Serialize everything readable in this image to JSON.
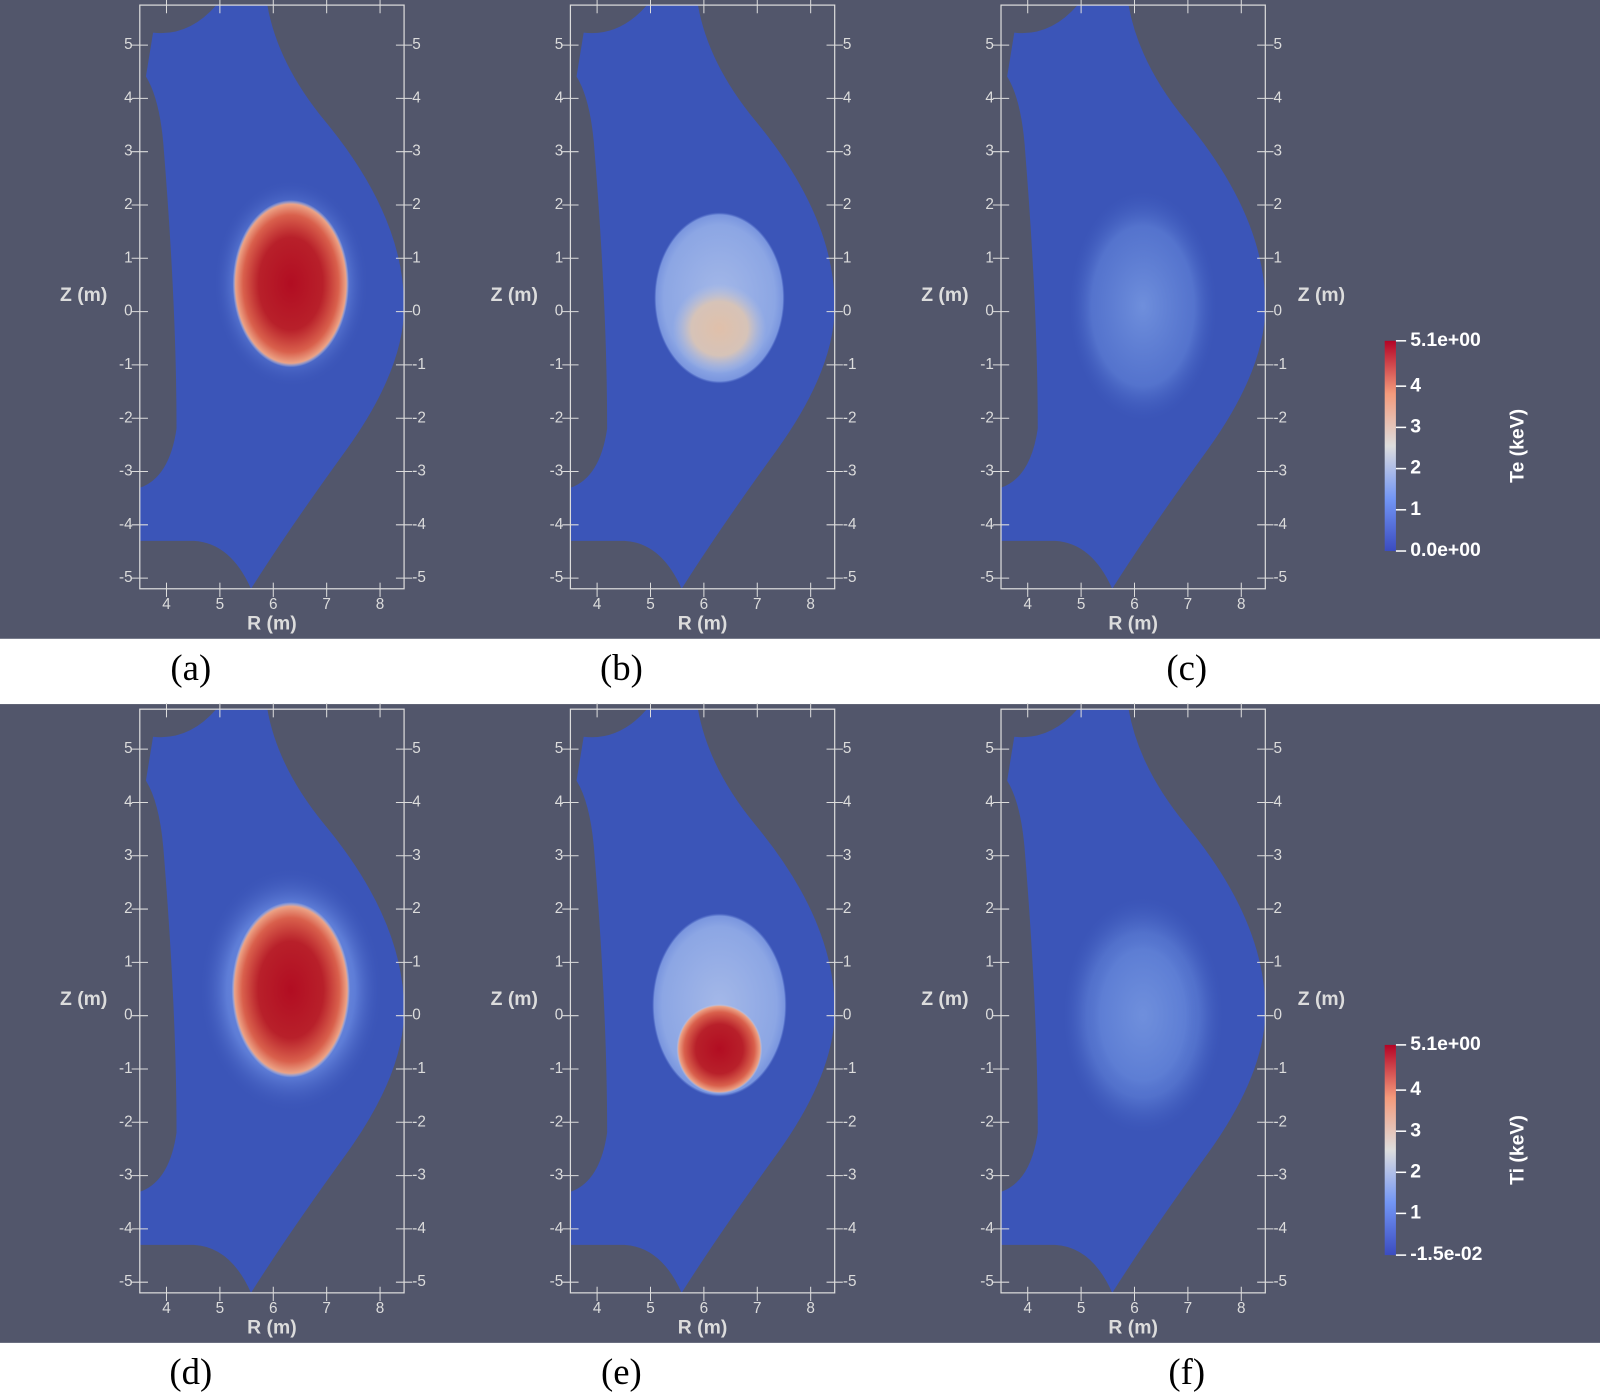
{
  "axes": {
    "xlabel": "R (m)",
    "ylabel": "Z (m)",
    "xlim": [
      3.5,
      8.45
    ],
    "ylim": [
      -5.2,
      5.75
    ],
    "xticks": [
      4,
      5,
      6,
      7,
      8
    ],
    "yticks": [
      -5,
      -4,
      -3,
      -2,
      -1,
      0,
      1,
      2,
      3,
      4,
      5
    ]
  },
  "rows": [
    {
      "colorbar": {
        "label": "Te (keV)",
        "lim": [
          0,
          5.1
        ],
        "ticks": [
          {
            "value": 5.1,
            "label": "5.1e+00"
          },
          4,
          3,
          2,
          1,
          {
            "value": 0,
            "label": "0.0e+00"
          }
        ]
      },
      "panels": [
        {
          "caption": "(a)"
        },
        {
          "caption": "(b)"
        },
        {
          "caption": "(c)",
          "ylabel_right": "Z (m)"
        }
      ]
    },
    {
      "colorbar": {
        "label": "Ti (keV)",
        "lim": [
          -0.015,
          5.1
        ],
        "ticks": [
          {
            "value": 5.1,
            "label": "5.1e+00"
          },
          4,
          3,
          2,
          1,
          {
            "value": -0.015,
            "label": "-1.5e-02"
          }
        ]
      },
      "panels": [
        {
          "caption": "(d)"
        },
        {
          "caption": "(e)"
        },
        {
          "caption": "(f)",
          "ylabel_right": "Z (m)"
        }
      ]
    }
  ]
}
